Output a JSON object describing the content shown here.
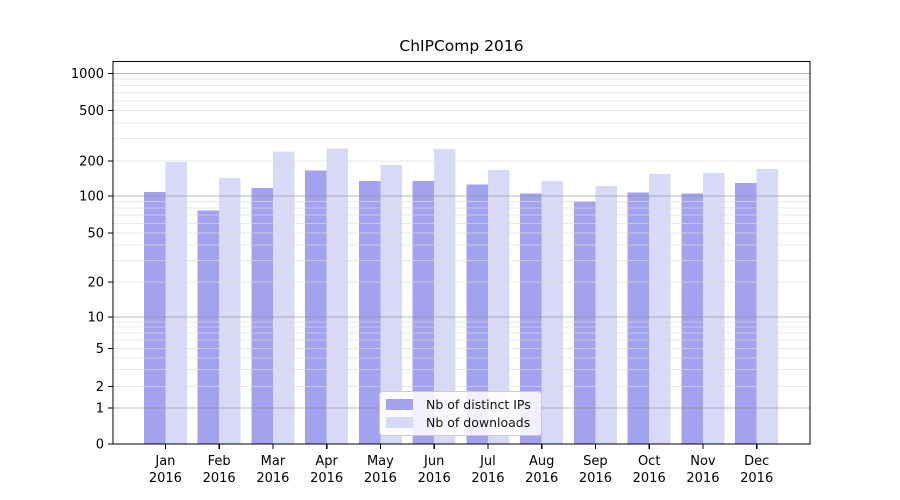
{
  "chart_data": {
    "type": "bar",
    "title": "ChIPComp 2016",
    "categories": [
      "Jan",
      "Feb",
      "Mar",
      "Apr",
      "May",
      "Jun",
      "Jul",
      "Aug",
      "Sep",
      "Oct",
      "Nov",
      "Dec"
    ],
    "year": "2016",
    "yticks": [
      0,
      1,
      2,
      5,
      10,
      20,
      50,
      100,
      200,
      500,
      1000
    ],
    "ylim": [
      0,
      1000
    ],
    "yscale": "symlog",
    "grid": "on",
    "legend_position": "lower center",
    "series": [
      {
        "name": "Nb of distinct IPs",
        "color": "#a2a2ef",
        "values": [
          108,
          76,
          117,
          165,
          135,
          135,
          126,
          105,
          90,
          107,
          105,
          129
        ]
      },
      {
        "name": "Nb of downloads",
        "color": "#d8d8f7",
        "values": [
          196,
          143,
          237,
          250,
          185,
          248,
          167,
          135,
          122,
          155,
          158,
          171
        ]
      }
    ],
    "colors": {
      "major_gridline": "#8c8c8c",
      "minor_gridline": "#dcdcdc",
      "axis": "#000000",
      "text": "#000000"
    }
  }
}
